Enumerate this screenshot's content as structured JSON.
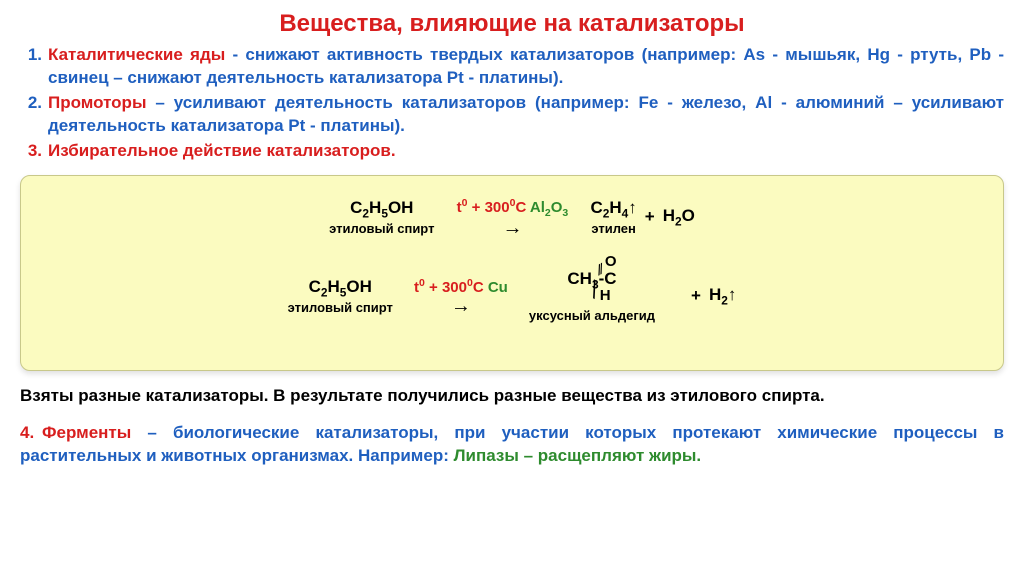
{
  "colors": {
    "red": "#d81e1e",
    "blue": "#1f5fbf",
    "green": "#2e8b2e",
    "black": "#000000",
    "box_bg": "#fbfbc0",
    "box_border": "#c8c88a"
  },
  "title": "Вещества, влияющие на катализаторы",
  "items": {
    "i1": {
      "num": "1.",
      "term": "Каталитические яды",
      "body": " - снижают активность твердых катализаторов (например: As - мышьяк, Hg - ртуть, Pb - свинец – снижают деятельность катализатора Pt - платины)."
    },
    "i2": {
      "num": "2.",
      "term": "Промоторы",
      "body": " – усиливают деятельность катализаторов (например: Fe - железо, Al - алюминий – усиливают деятельность катализатора Pt - платины)."
    },
    "i3": {
      "num": "3.",
      "term": "Избирательное действие катализаторов."
    }
  },
  "reactions": {
    "r1": {
      "reagent": {
        "formula_html": "C<sub>2</sub>H<sub>5</sub>OH",
        "label": "этиловый спирт"
      },
      "cond_t": "t",
      "cond_sup": "0",
      "cond_plus": " + 300",
      "cond_sup2": "0",
      "cond_C": "C ",
      "catalyst": "Al",
      "catalyst_sub": "2",
      "catalyst2": "O",
      "catalyst_sub2": "3",
      "product1": {
        "formula_html": "C<sub>2</sub>H<sub>4</sub>↑",
        "label": "этилен"
      },
      "plus": " + ",
      "product2": {
        "formula_html": "H<sub>2</sub>O"
      }
    },
    "r2": {
      "reagent": {
        "formula_html": "C<sub>2</sub>H<sub>5</sub>OH",
        "label": "этиловый спирт"
      },
      "cond_t": "t",
      "cond_sup": "0",
      "cond_plus": " + 300",
      "cond_sup2": "0",
      "cond_C": "C ",
      "catalyst": "Cu",
      "product_main": "CH<sub>3</sub>-C",
      "product_O": "O",
      "product_H": "H",
      "product_label": "уксусный альдегид",
      "plus": " + ",
      "product2": "H<sub>2</sub>↑"
    }
  },
  "conclusion": "Взяты разные катализаторы. В результате получились разные вещества из этилового спирта.",
  "item4": {
    "num": "4. ",
    "term": "Ферменты",
    "body1": " – биологические катализаторы, при участии которых протекают химические процессы в растительных и животных организмах. Например: ",
    "ex": "Липазы – расщепляют жиры."
  }
}
